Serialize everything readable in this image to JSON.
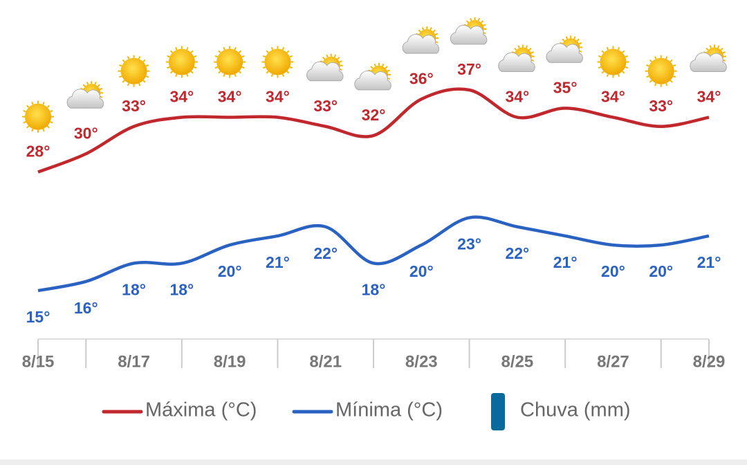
{
  "chart_data": {
    "type": "line",
    "categories": [
      "8/15",
      null,
      "8/17",
      null,
      "8/19",
      null,
      "8/21",
      null,
      "8/23",
      null,
      "8/25",
      null,
      "8/27",
      null,
      "8/29"
    ],
    "icons": [
      "sun",
      "partly-cloudy",
      "sun",
      "sun",
      "sun",
      "sun",
      "partly-cloudy",
      "partly-cloudy",
      "partly-cloudy",
      "partly-cloudy",
      "partly-cloudy",
      "partly-cloudy",
      "sun",
      "sun",
      "partly-cloudy"
    ],
    "series": [
      {
        "name": "Máxima (°C)",
        "color": "#c0282d",
        "type": "line",
        "values": [
          28,
          30,
          33,
          34,
          34,
          34,
          33,
          32,
          36,
          37,
          34,
          35,
          34,
          33,
          34
        ],
        "value_labels": [
          "28°",
          "30°",
          "33°",
          "34°",
          "34°",
          "34°",
          "33°",
          "32°",
          "36°",
          "37°",
          "34°",
          "35°",
          "34°",
          "33°",
          "34°"
        ]
      },
      {
        "name": "Mínima (°C)",
        "color": "#2a62c2",
        "type": "line",
        "values": [
          15,
          16,
          18,
          18,
          20,
          21,
          22,
          18,
          20,
          23,
          22,
          21,
          20,
          20,
          21
        ],
        "value_labels": [
          "15°",
          "16°",
          "18°",
          "18°",
          "20°",
          "21°",
          "22°",
          "18°",
          "20°",
          "23°",
          "22°",
          "21°",
          "20°",
          "20°",
          "21°"
        ]
      },
      {
        "name": "Chuva (mm)",
        "color": "#0a6a9c",
        "type": "bar",
        "values": [
          0,
          0,
          0,
          0,
          0,
          0,
          0,
          0,
          0,
          0,
          0,
          0,
          0,
          0,
          0
        ]
      }
    ]
  }
}
